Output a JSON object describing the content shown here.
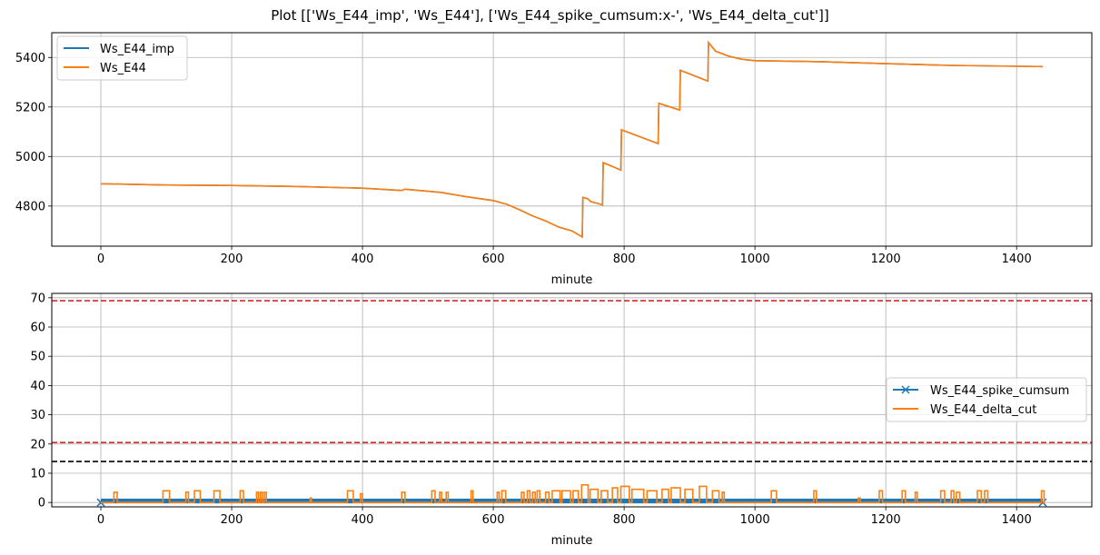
{
  "figure": {
    "title": "Plot [['Ws_E44_imp', 'Ws_E44'], ['Ws_E44_spike_cumsum:x-', 'Ws_E44_delta_cut']]"
  },
  "colors": {
    "blue": "#1f77b4",
    "orange": "#ff7f0e",
    "grid": "#b0b0b0",
    "red_dashed": "#d62728",
    "black_dashed": "#000000"
  },
  "chart_data": [
    {
      "type": "line",
      "xlabel": "minute",
      "ylabel": "",
      "xlim": [
        -75,
        1515
      ],
      "ylim": [
        4638,
        5500
      ],
      "x_ticks": [
        0,
        200,
        400,
        600,
        800,
        1000,
        1200,
        1400
      ],
      "y_ticks": [
        4800,
        5000,
        5200,
        5400
      ],
      "grid": true,
      "legend": "upper left",
      "series": [
        {
          "name": "Ws_E44_imp",
          "color": "blue",
          "x": [
            0,
            100,
            200,
            300,
            400,
            460,
            465,
            520,
            560,
            600,
            620,
            640,
            660,
            680,
            700,
            720,
            736,
            737,
            744,
            749,
            767,
            768,
            782,
            795,
            796,
            852,
            853,
            885,
            886,
            928,
            929,
            940,
            960,
            980,
            1000,
            1100,
            1200,
            1300,
            1440
          ],
          "y": [
            4890,
            4885,
            4883,
            4879,
            4872,
            4863,
            4868,
            4855,
            4837,
            4822,
            4808,
            4785,
            4760,
            4740,
            4715,
            4700,
            4675,
            4835,
            4830,
            4818,
            4805,
            4975,
            4960,
            4945,
            5108,
            5052,
            5215,
            5188,
            5348,
            5305,
            5460,
            5425,
            5405,
            5393,
            5387,
            5383,
            5375,
            5368,
            5363
          ]
        },
        {
          "name": "Ws_E44",
          "color": "orange",
          "x": [
            0,
            100,
            200,
            300,
            400,
            460,
            465,
            520,
            560,
            600,
            620,
            640,
            660,
            680,
            700,
            720,
            736,
            737,
            744,
            749,
            767,
            768,
            782,
            795,
            796,
            852,
            853,
            885,
            886,
            928,
            929,
            940,
            960,
            980,
            1000,
            1100,
            1200,
            1300,
            1440
          ],
          "y": [
            4890,
            4885,
            4883,
            4879,
            4872,
            4863,
            4868,
            4855,
            4837,
            4822,
            4808,
            4785,
            4760,
            4740,
            4715,
            4700,
            4675,
            4835,
            4830,
            4818,
            4805,
            4975,
            4960,
            4945,
            5108,
            5052,
            5215,
            5188,
            5348,
            5305,
            5460,
            5425,
            5405,
            5393,
            5387,
            5383,
            5375,
            5368,
            5363
          ]
        }
      ]
    },
    {
      "type": "line",
      "xlabel": "minute",
      "ylabel": "",
      "xlim": [
        -75,
        1515
      ],
      "ylim": [
        -1.5,
        71.5
      ],
      "x_ticks": [
        0,
        200,
        400,
        600,
        800,
        1000,
        1200,
        1400
      ],
      "y_ticks": [
        0,
        10,
        20,
        30,
        40,
        50,
        60,
        70
      ],
      "grid": true,
      "legend": "center right",
      "hlines": [
        {
          "y": 69,
          "color": "red_dashed"
        },
        {
          "y": 20.5,
          "color": "red_dashed"
        },
        {
          "y": 14,
          "color": "black_dashed"
        }
      ],
      "series": [
        {
          "name": "Ws_E44_spike_cumsum",
          "color": "blue",
          "marker": "x",
          "x_range": [
            0,
            1440
          ],
          "low": 0,
          "high": 1,
          "description_values": [
            0,
            1
          ]
        },
        {
          "name": "Ws_E44_delta_cut",
          "color": "orange",
          "pulses": [
            [
              20,
              25,
              3.5
            ],
            [
              95,
              105,
              4
            ],
            [
              130,
              134,
              3.5
            ],
            [
              143,
              152,
              4
            ],
            [
              173,
              182,
              4
            ],
            [
              213,
              218,
              4
            ],
            [
              238,
              241,
              3.5
            ],
            [
              244,
              247,
              3.5
            ],
            [
              250,
              253,
              3.5
            ],
            [
              320,
              322,
              1.5
            ],
            [
              377,
              386,
              4
            ],
            [
              397,
              400,
              3
            ],
            [
              460,
              465,
              3.5
            ],
            [
              506,
              511,
              4
            ],
            [
              518,
              521,
              3.5
            ],
            [
              528,
              531,
              3.5
            ],
            [
              566,
              569,
              4
            ],
            [
              606,
              609,
              3.5
            ],
            [
              613,
              619,
              4
            ],
            [
              643,
              647,
              3.5
            ],
            [
              652,
              656,
              4
            ],
            [
              660,
              664,
              3.5
            ],
            [
              667,
              671,
              4
            ],
            [
              680,
              685,
              3.5
            ],
            [
              690,
              702,
              4
            ],
            [
              705,
              718,
              4
            ],
            [
              722,
              730,
              4
            ],
            [
              735,
              745,
              6
            ],
            [
              748,
              760,
              4.5
            ],
            [
              765,
              775,
              4
            ],
            [
              782,
              790,
              5
            ],
            [
              795,
              808,
              5.5
            ],
            [
              812,
              830,
              4.5
            ],
            [
              835,
              850,
              4
            ],
            [
              858,
              868,
              4.5
            ],
            [
              872,
              886,
              5
            ],
            [
              893,
              905,
              4.5
            ],
            [
              915,
              926,
              5.5
            ],
            [
              935,
              945,
              4
            ],
            [
              950,
              953,
              3.5
            ],
            [
              1025,
              1033,
              4
            ],
            [
              1090,
              1094,
              4
            ],
            [
              1158,
              1161,
              1.5
            ],
            [
              1190,
              1195,
              4
            ],
            [
              1225,
              1230,
              4
            ],
            [
              1245,
              1248,
              3.5
            ],
            [
              1284,
              1290,
              4
            ],
            [
              1300,
              1304,
              4
            ],
            [
              1308,
              1313,
              3.5
            ],
            [
              1340,
              1346,
              4
            ],
            [
              1351,
              1356,
              4
            ],
            [
              1438,
              1442,
              4
            ]
          ]
        }
      ]
    }
  ]
}
